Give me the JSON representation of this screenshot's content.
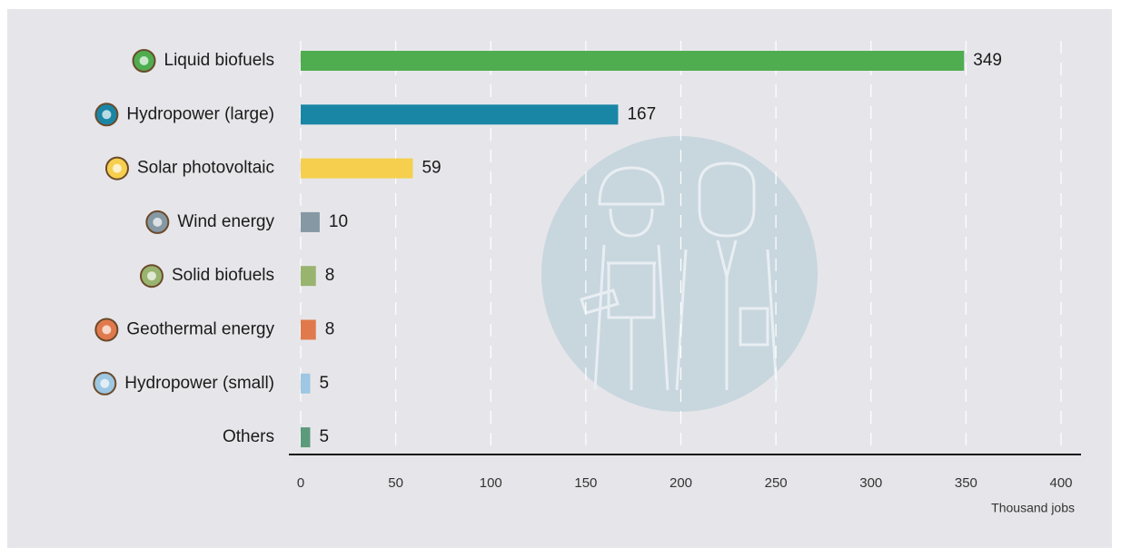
{
  "chart_data": {
    "type": "bar",
    "orientation": "horizontal",
    "x_label": "Thousand jobs",
    "categories": [
      "Liquid biofuels",
      "Hydropower (large)",
      "Solar photovoltaic",
      "Wind energy",
      "Solid biofuels",
      "Geothermal energy",
      "Hydropower (small)",
      "Others"
    ],
    "values": [
      349,
      167,
      59,
      10,
      8,
      8,
      5,
      5
    ],
    "colors": [
      "#4fad50",
      "#1a86a6",
      "#f5cf4d",
      "#8598a4",
      "#98b46f",
      "#e07a4c",
      "#9dc7e2",
      "#5b9a7b"
    ],
    "xlim": [
      0,
      400
    ],
    "xticks": [
      0,
      50,
      100,
      150,
      200,
      250,
      300,
      350,
      400
    ],
    "grid": true
  }
}
